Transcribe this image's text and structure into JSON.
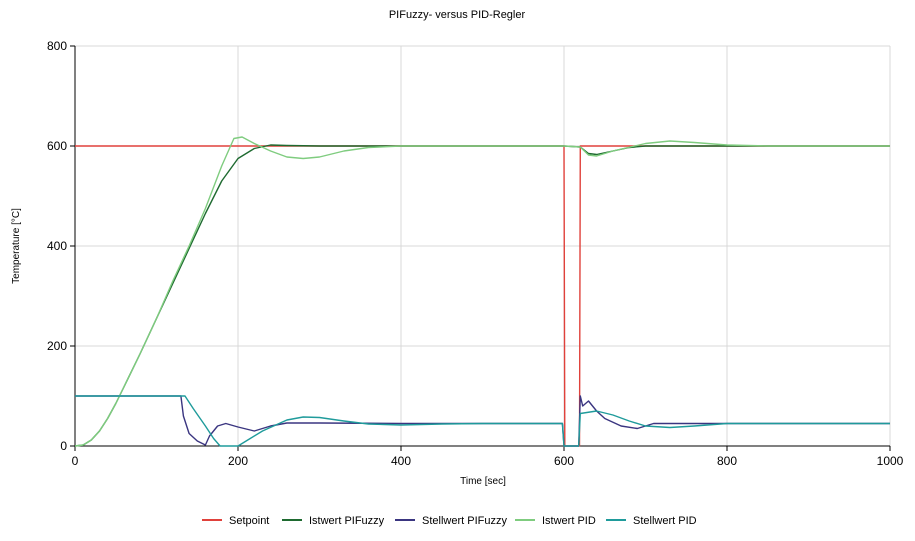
{
  "chart_data": {
    "type": "line",
    "title": "PIFuzzy- versus PID-Regler",
    "xlabel": "Time [sec]",
    "ylabel": "Temperature [°C]",
    "xlim": [
      0,
      1000
    ],
    "ylim": [
      0,
      800
    ],
    "xticks": [
      "0",
      "200",
      "400",
      "600",
      "800",
      "1000"
    ],
    "yticks": [
      "0",
      "200",
      "400",
      "600",
      "800"
    ],
    "xtick_values": [
      0,
      200,
      400,
      600,
      800,
      1000
    ],
    "ytick_values": [
      0,
      200,
      400,
      600,
      800
    ],
    "grid": true,
    "legend": "bottom",
    "series": [
      {
        "name": "Setpoint",
        "color": "#e0413b",
        "points": [
          [
            0,
            600
          ],
          [
            600,
            600
          ],
          [
            601,
            0
          ],
          [
            619,
            0
          ],
          [
            620,
            600
          ],
          [
            1000,
            600
          ]
        ]
      },
      {
        "name": "Istwert PIFuzzy",
        "color": "#1e6a30",
        "points": [
          [
            0,
            0
          ],
          [
            10,
            2
          ],
          [
            20,
            12
          ],
          [
            30,
            30
          ],
          [
            40,
            55
          ],
          [
            50,
            85
          ],
          [
            60,
            118
          ],
          [
            80,
            185
          ],
          [
            100,
            255
          ],
          [
            120,
            325
          ],
          [
            140,
            395
          ],
          [
            160,
            465
          ],
          [
            180,
            530
          ],
          [
            200,
            575
          ],
          [
            220,
            595
          ],
          [
            240,
            602
          ],
          [
            260,
            601
          ],
          [
            300,
            600
          ],
          [
            400,
            600
          ],
          [
            600,
            600
          ],
          [
            620,
            598
          ],
          [
            630,
            585
          ],
          [
            640,
            583
          ],
          [
            660,
            590
          ],
          [
            680,
            597
          ],
          [
            700,
            600
          ],
          [
            800,
            600
          ],
          [
            1000,
            600
          ]
        ]
      },
      {
        "name": "Stellwert PIFuzzy",
        "color": "#3a3580",
        "points": [
          [
            0,
            100
          ],
          [
            130,
            100
          ],
          [
            133,
            60
          ],
          [
            140,
            25
          ],
          [
            150,
            10
          ],
          [
            160,
            2
          ],
          [
            165,
            20
          ],
          [
            175,
            40
          ],
          [
            185,
            45
          ],
          [
            200,
            38
          ],
          [
            220,
            30
          ],
          [
            240,
            40
          ],
          [
            260,
            46
          ],
          [
            300,
            46
          ],
          [
            400,
            45
          ],
          [
            500,
            45
          ],
          [
            598,
            45
          ],
          [
            600,
            0
          ],
          [
            618,
            0
          ],
          [
            620,
            100
          ],
          [
            623,
            80
          ],
          [
            630,
            90
          ],
          [
            640,
            70
          ],
          [
            650,
            55
          ],
          [
            670,
            40
          ],
          [
            690,
            35
          ],
          [
            700,
            40
          ],
          [
            710,
            45
          ],
          [
            800,
            45
          ],
          [
            1000,
            45
          ]
        ]
      },
      {
        "name": "Istwert PID",
        "color": "#7fcc7f",
        "points": [
          [
            0,
            0
          ],
          [
            10,
            2
          ],
          [
            20,
            12
          ],
          [
            30,
            30
          ],
          [
            40,
            55
          ],
          [
            50,
            85
          ],
          [
            60,
            118
          ],
          [
            80,
            185
          ],
          [
            100,
            255
          ],
          [
            120,
            330
          ],
          [
            140,
            400
          ],
          [
            160,
            475
          ],
          [
            180,
            560
          ],
          [
            195,
            615
          ],
          [
            205,
            618
          ],
          [
            220,
            605
          ],
          [
            240,
            590
          ],
          [
            260,
            578
          ],
          [
            280,
            575
          ],
          [
            300,
            578
          ],
          [
            330,
            590
          ],
          [
            360,
            597
          ],
          [
            400,
            600
          ],
          [
            600,
            600
          ],
          [
            620,
            598
          ],
          [
            630,
            582
          ],
          [
            640,
            580
          ],
          [
            660,
            590
          ],
          [
            700,
            605
          ],
          [
            730,
            610
          ],
          [
            760,
            607
          ],
          [
            800,
            602
          ],
          [
            850,
            600
          ],
          [
            1000,
            600
          ]
        ]
      },
      {
        "name": "Stellwert PID",
        "color": "#1f9b9b",
        "points": [
          [
            0,
            100
          ],
          [
            135,
            100
          ],
          [
            145,
            75
          ],
          [
            160,
            40
          ],
          [
            170,
            15
          ],
          [
            178,
            0
          ],
          [
            200,
            0
          ],
          [
            215,
            15
          ],
          [
            230,
            30
          ],
          [
            260,
            52
          ],
          [
            280,
            58
          ],
          [
            300,
            57
          ],
          [
            330,
            50
          ],
          [
            360,
            44
          ],
          [
            400,
            42
          ],
          [
            450,
            44
          ],
          [
            500,
            45
          ],
          [
            598,
            45
          ],
          [
            600,
            0
          ],
          [
            618,
            0
          ],
          [
            620,
            65
          ],
          [
            640,
            70
          ],
          [
            660,
            62
          ],
          [
            680,
            50
          ],
          [
            700,
            40
          ],
          [
            730,
            37
          ],
          [
            760,
            40
          ],
          [
            800,
            45
          ],
          [
            1000,
            45
          ]
        ]
      }
    ]
  }
}
